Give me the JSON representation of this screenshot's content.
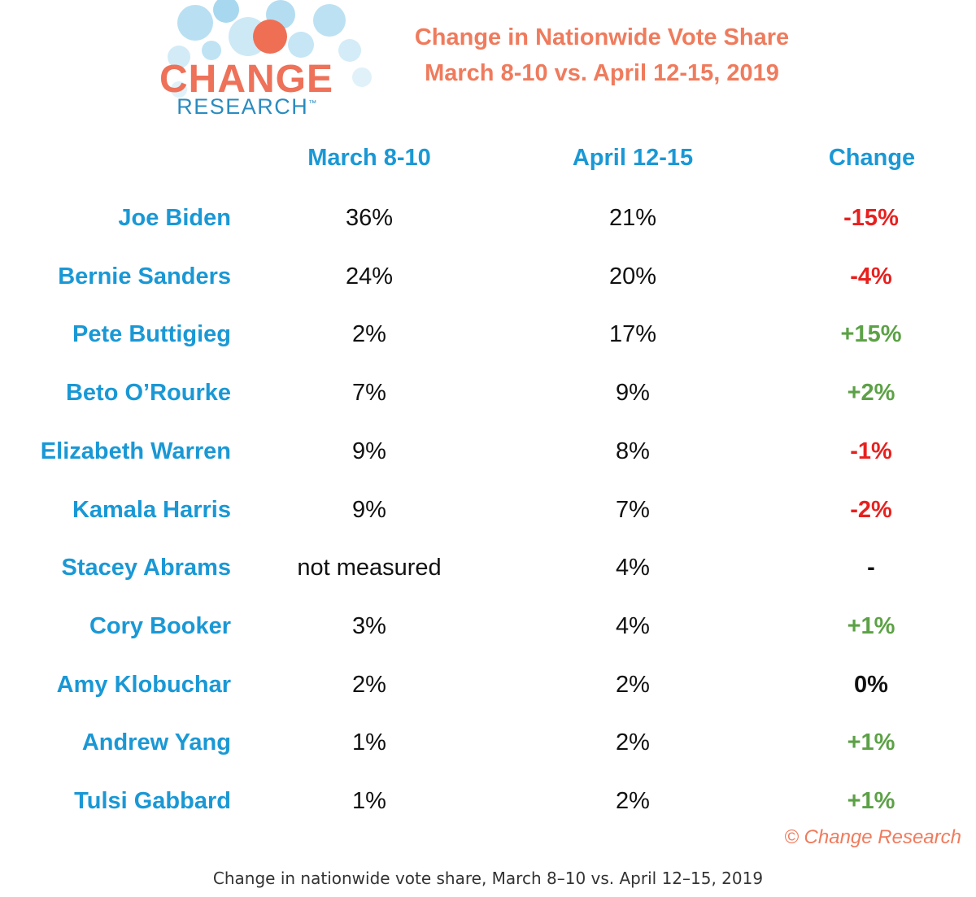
{
  "logo": {
    "line1": "CHANGE",
    "line2": "RESEARCH",
    "trademark": "™",
    "colors": {
      "dots": "#9fd3ec",
      "accent_dot": "#ef6f55",
      "word1": "#ee7159",
      "word2": "#2a8bbf"
    }
  },
  "colors": {
    "title": "#ef7b5d",
    "header": "#1a98d5",
    "candidate": "#1a98d5",
    "value": "#111111",
    "negative": "#e8201e",
    "positive": "#5ca146"
  },
  "chart_data": {
    "type": "table",
    "title": "Change in Nationwide Vote Share",
    "subtitle": "March 8-10 vs. April 12-15, 2019",
    "columns": [
      "March 8-10",
      "April 12-15",
      "Change"
    ],
    "rows": [
      {
        "candidate": "Joe Biden",
        "march": "36%",
        "april": "21%",
        "change": "-15%",
        "direction": "neg"
      },
      {
        "candidate": "Bernie Sanders",
        "march": "24%",
        "april": "20%",
        "change": "-4%",
        "direction": "neg"
      },
      {
        "candidate": "Pete Buttigieg",
        "march": "2%",
        "april": "17%",
        "change": "+15%",
        "direction": "pos"
      },
      {
        "candidate": "Beto O’Rourke",
        "march": "7%",
        "april": "9%",
        "change": "+2%",
        "direction": "pos"
      },
      {
        "candidate": "Elizabeth Warren",
        "march": "9%",
        "april": "8%",
        "change": "-1%",
        "direction": "neg"
      },
      {
        "candidate": "Kamala Harris",
        "march": "9%",
        "april": "7%",
        "change": "-2%",
        "direction": "neg"
      },
      {
        "candidate": "Stacey Abrams",
        "march": "not measured",
        "april": "4%",
        "change": "-",
        "direction": "zero"
      },
      {
        "candidate": "Cory Booker",
        "march": "3%",
        "april": "4%",
        "change": "+1%",
        "direction": "pos"
      },
      {
        "candidate": "Amy Klobuchar",
        "march": "2%",
        "april": "2%",
        "change": "0%",
        "direction": "zero"
      },
      {
        "candidate": "Andrew Yang",
        "march": "1%",
        "april": "2%",
        "change": "+1%",
        "direction": "pos"
      },
      {
        "candidate": "Tulsi Gabbard",
        "march": "1%",
        "april": "2%",
        "change": "+1%",
        "direction": "pos"
      }
    ],
    "copyright": "© Change Research"
  },
  "caption": "Change in nationwide vote share, March 8–10 vs. April 12–15, 2019"
}
